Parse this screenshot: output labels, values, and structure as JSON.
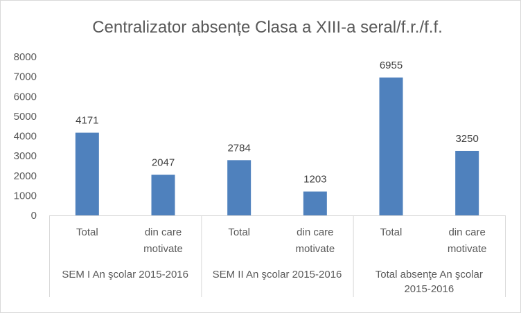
{
  "chart_data": {
    "type": "bar",
    "title": "Centralizator absențe Clasa a XIII-a seral/f.r./f.f.",
    "xlabel": "",
    "ylabel": "",
    "ylim": [
      0,
      8000
    ],
    "yticks": [
      0,
      1000,
      2000,
      3000,
      4000,
      5000,
      6000,
      7000,
      8000
    ],
    "grid": false,
    "legend": "none",
    "bar_color": "#4f81bd",
    "groups": [
      {
        "lines": [
          "SEM I An şcolar 2015-2016"
        ]
      },
      {
        "lines": [
          "SEM II An şcolar 2015-2016"
        ]
      },
      {
        "lines": [
          "Total absenţe An şcolar",
          "2015-2016"
        ]
      }
    ],
    "categories": [
      {
        "group": 0,
        "lines": [
          "Total"
        ]
      },
      {
        "group": 0,
        "lines": [
          "din care",
          "motivate"
        ]
      },
      {
        "group": 1,
        "lines": [
          "Total"
        ]
      },
      {
        "group": 1,
        "lines": [
          "din care",
          "motivate"
        ]
      },
      {
        "group": 2,
        "lines": [
          "Total"
        ]
      },
      {
        "group": 2,
        "lines": [
          "din care",
          "motivate"
        ]
      }
    ],
    "values": [
      4171,
      2047,
      2784,
      1203,
      6955,
      3250
    ]
  }
}
